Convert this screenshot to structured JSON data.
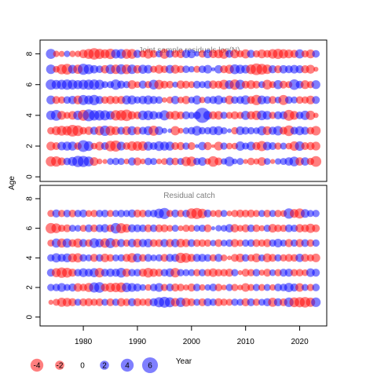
{
  "chart_data": {
    "type": "scatter",
    "encoding": "bubble residual plot; circle area proportional to |residual|, red = negative, blue = positive",
    "colors": {
      "negative": "#ff0000",
      "positive": "#0000ff",
      "opacity": 0.5
    },
    "xlabel": "Year",
    "ylabel": "Age",
    "x_ticks": [
      "1980",
      "1990",
      "2000",
      "2010",
      "2020"
    ],
    "xlim": [
      1972,
      2025
    ],
    "panels": [
      {
        "title": "Joint sample residuals log(N)",
        "ylim": [
          -0.3,
          8.9
        ],
        "y_ticks": [
          "0",
          "2",
          "4",
          "6",
          "8"
        ],
        "x_start": 1974,
        "x_end": 2023,
        "ages": [
          1,
          2,
          3,
          4,
          5,
          6,
          7,
          8
        ],
        "residuals": [
          [
            -2.5,
            -2.6,
            -1.6,
            1.4,
            2.0,
            3.1,
            3.0,
            2.4,
            -1.8,
            -0.8,
            -0.6,
            1.1,
            1.3,
            1.2,
            -0.8,
            1.6,
            -1.6,
            -0.8,
            1.4,
            1.2,
            -0.8,
            -1.1,
            1.5,
            -1.4,
            1.2,
            -2.2,
            -2.4,
            1.3,
            1.8,
            -1.0,
            -2.7,
            -1.5,
            1.0,
            2.3,
            0.8,
            1.2,
            -0.6,
            -1.4,
            -0.9,
            -1.8,
            1.1,
            -0.6,
            1.0,
            1.2,
            1.7,
            2.3,
            -1.7,
            1.7,
            -1.3,
            -2.8
          ],
          [
            -1.9,
            -1.5,
            1.8,
            2.0,
            2.0,
            -1.4,
            3.3,
            2.3,
            -1.1,
            -1.9,
            1.5,
            -2.7,
            -3.0,
            1.9,
            -1.4,
            -2.2,
            -2.2,
            -2.2,
            2.0,
            1.5,
            2.3,
            2.0,
            2.0,
            -1.5,
            -1.6,
            1.3,
            -1.5,
            0.4,
            1.7,
            -1.6,
            -0.3,
            -1.9,
            1.3,
            -1.1,
            -1.1,
            2.1,
            1.2,
            1.9,
            -1.6,
            -2.5,
            1.8,
            1.5,
            -1.3,
            1.2,
            -1.1,
            -2.2,
            2.2,
            -1.5,
            -1.6,
            -1.9
          ],
          [
            -1.3,
            -2.0,
            -2.4,
            -2.2,
            -3.3,
            -2.8,
            -1.4,
            -1.7,
            1.6,
            -2.1,
            2.6,
            -2.3,
            -1.8,
            1.5,
            -1.9,
            2.0,
            -1.6,
            1.5,
            2.0,
            -2.5,
            1.8,
            0.8,
            0.5,
            -2.1,
            -0.8,
            1.1,
            1.4,
            2.3,
            1.3,
            1.3,
            1.8,
            2.0,
            1.2,
            0.5,
            -1.3,
            1.8,
            1.5,
            1.3,
            1.1,
            2.1,
            -1.9,
            1.6,
            2.2,
            -1.5,
            -2.8,
            1.5,
            2.0,
            1.6,
            -1.4,
            -2.2
          ],
          [
            2.1,
            2.8,
            -1.9,
            -1.2,
            -1.8,
            2.1,
            -2.9,
            3.4,
            2.6,
            2.6,
            2.5,
            1.9,
            -2.6,
            -2.7,
            -3.2,
            -1.7,
            -1.5,
            2.2,
            2.3,
            1.8,
            1.3,
            2.5,
            -1.6,
            -2.0,
            -1.5,
            1.6,
            1.2,
            1.5,
            5.5,
            1.9,
            -1.6,
            -1.8,
            1.3,
            -1.2,
            -1.6,
            -1.3,
            2.0,
            -1.7,
            -2.1,
            2.3,
            1.9,
            -1.3,
            1.6,
            1.6,
            -2.9,
            -1.9,
            1.4,
            2.1,
            -2.1,
            -0.7
          ],
          [
            1.9,
            -1.5,
            -1.3,
            1.4,
            1.7,
            -1.9,
            2.5,
            2.0,
            2.6,
            1.6,
            -1.4,
            -1.7,
            -1.5,
            -1.6,
            2.0,
            2.0,
            1.3,
            1.7,
            2.0,
            1.6,
            1.4,
            -0.7,
            -1.2,
            1.7,
            -1.1,
            -1.7,
            1.1,
            2.0,
            -1.0,
            1.3,
            1.5,
            2.0,
            1.0,
            -1.9,
            1.4,
            1.5,
            2.1,
            -1.5,
            -2.6,
            1.9,
            1.5,
            -1.5,
            1.1,
            -2.5,
            1.4,
            1.2,
            -1.4,
            -1.3,
            -1.8,
            1.5
          ],
          [
            2.6,
            2.1,
            2.3,
            2.6,
            2.3,
            2.0,
            2.3,
            2.5,
            2.6,
            2.3,
            1.2,
            1.3,
            2.6,
            1.6,
            1.3,
            -1.9,
            -1.1,
            1.6,
            -1.3,
            2.3,
            -2.2,
            -1.5,
            -1.4,
            0.9,
            -1.7,
            -1.5,
            -1.2,
            1.5,
            1.2,
            1.6,
            -1.7,
            -1.5,
            -2.3,
            1.9,
            -2.6,
            2.3,
            -1.5,
            -1.9,
            -1.5,
            1.2,
            -2.3,
            -1.2,
            2.0,
            -1.5,
            -1.2,
            2.7,
            1.5,
            -1.9,
            -1.3,
            1.9
          ],
          [
            2.2,
            -1.1,
            -2.5,
            -2.8,
            1.9,
            -2.1,
            3.0,
            2.4,
            1.7,
            1.4,
            -1.7,
            2.2,
            -2.2,
            2.5,
            -2.3,
            2.2,
            -1.7,
            2.0,
            1.8,
            -1.2,
            -1.9,
            -1.4,
            1.8,
            -1.9,
            -1.4,
            1.4,
            1.0,
            -1.2,
            1.4,
            1.8,
            0.4,
            1.7,
            -1.5,
            -2.0,
            2.4,
            2.0,
            1.8,
            -2.3,
            -3.3,
            -2.8,
            -2.2,
            1.6,
            -1.5,
            1.7,
            1.5,
            1.8,
            1.6,
            -1.6,
            -1.9,
            -0.6
          ],
          [
            2.4,
            -1.0,
            -0.9,
            1.0,
            -1.0,
            -1.0,
            -1.8,
            -2.4,
            -3.2,
            -2.5,
            -2.0,
            -2.6,
            2.1,
            2.2,
            -2.3,
            -2.3,
            1.6,
            -1.3,
            -2.2,
            -1.5,
            1.2,
            -2.3,
            1.5,
            -1.4,
            -1.7,
            1.7,
            1.8,
            0.7,
            -1.4,
            1.8,
            -1.7,
            -1.9,
            -2.3,
            1.5,
            -1.9,
            -1.3,
            -2.0,
            1.6,
            -1.3,
            -1.9,
            -1.5,
            -2.2,
            -2.5,
            -2.1,
            -1.9,
            -1.6,
            2.0,
            -1.3,
            -1.9,
            1.4
          ]
        ]
      },
      {
        "title": "Residual catch",
        "ylim": [
          -0.6,
          8.9
        ],
        "y_ticks": [
          "0",
          "2",
          "4",
          "6",
          "8"
        ],
        "x_start": 1974,
        "x_end": 2023,
        "ages": [
          1,
          2,
          3,
          4,
          5,
          6,
          7
        ],
        "residuals": [
          [
            -0.6,
            -1.2,
            -2.0,
            -1.9,
            -1.6,
            1.2,
            -1.5,
            -1.6,
            -1.3,
            -1.5,
            1.2,
            -1.5,
            1.3,
            -1.7,
            -1.4,
            1.6,
            -1.6,
            -1.3,
            -1.5,
            1.6,
            2.5,
            2.9,
            2.4,
            -1.8,
            2.2,
            -1.9,
            -1.5,
            1.2,
            -1.5,
            1.6,
            1.3,
            -1.6,
            -1.3,
            -1.2,
            1.3,
            1.2,
            -1.6,
            1.5,
            -1.3,
            1.2,
            1.6,
            -2.0,
            1.6,
            -1.5,
            2.2,
            -2.3,
            -2.5,
            -2.7,
            -2.1,
            2.2
          ],
          [
            1.3,
            1.4,
            1.9,
            1.2,
            1.6,
            -1.8,
            -1.4,
            -2.0,
            2.5,
            2.7,
            -1.6,
            -2.1,
            -2.2,
            -2.4,
            2.2,
            1.9,
            1.6,
            1.1,
            -1.1,
            1.4,
            1.9,
            -1.3,
            1.5,
            -1.6,
            -1.4,
            -0.9,
            -1.6,
            1.4,
            -1.0,
            1.0,
            1.5,
            -1.4,
            -0.8,
            1.3,
            -1.3,
            -0.8,
            -1.8,
            -1.2,
            1.3,
            -1.2,
            1.2,
            -1.0,
            1.5,
            1.4,
            2.1,
            1.6,
            -1.8,
            1.2,
            -1.3,
            1.4
          ],
          [
            1.5,
            -2.0,
            -2.6,
            -2.4,
            -1.6,
            1.4,
            1.9,
            1.6,
            2.0,
            -2.2,
            1.5,
            1.7,
            1.6,
            2.3,
            -1.7,
            1.4,
            1.4,
            -1.6,
            -2.3,
            -1.7,
            -1.5,
            1.4,
            1.8,
            -2.2,
            1.3,
            1.2,
            1.2,
            -1.3,
            1.3,
            -1.4,
            -1.8,
            -1.4,
            -1.4,
            -1.6,
            1.3,
            -0.6,
            -1.5,
            -1.3,
            1.4,
            -0.9,
            -1.5,
            1.1,
            -1.3,
            1.5,
            1.6,
            -1.3,
            -1.4,
            -1.1,
            1.8,
            1.5
          ],
          [
            1.3,
            2.1,
            1.6,
            1.9,
            -1.9,
            -2.1,
            1.4,
            1.2,
            -1.6,
            1.4,
            -1.8,
            -1.4,
            1.2,
            1.3,
            -1.6,
            -2.2,
            1.9,
            -1.4,
            1.5,
            1.1,
            1.3,
            -1.5,
            1.6,
            1.6,
            -2.6,
            -2.3,
            -1.6,
            1.6,
            1.6,
            1.4,
            -1.3,
            1.6,
            -1.1,
            -0.5,
            -1.5,
            -1.8,
            1.4,
            -1.3,
            -1.9,
            1.2,
            -1.9,
            -1.5,
            1.3,
            -1.3,
            -1.5,
            -1.4,
            1.7,
            -1.6,
            -1.3,
            -1.8
          ],
          [
            -1.2,
            2.0,
            -2.0,
            2.0,
            -1.5,
            -2.0,
            1.6,
            -1.4,
            2.3,
            1.8,
            -2.2,
            2.4,
            -1.7,
            1.6,
            -1.3,
            1.7,
            -1.8,
            1.6,
            1.8,
            -1.5,
            -1.5,
            1.6,
            -1.6,
            1.7,
            -1.8,
            -1.6,
            1.5,
            -1.4,
            -1.4,
            -1.3,
            1.0,
            -1.5,
            1.1,
            1.4,
            -1.6,
            -1.2,
            1.3,
            1.4,
            -1.5,
            -1.3,
            -1.6,
            1.3,
            1.8,
            1.2,
            -1.6,
            1.3,
            -1.6,
            1.5,
            -1.4,
            1.3
          ],
          [
            -2.7,
            -2.3,
            -1.3,
            -1.5,
            1.2,
            1.1,
            -1.2,
            1.5,
            -1.4,
            1.5,
            1.7,
            -1.4,
            2.7,
            -2.5,
            -1.8,
            1.6,
            1.5,
            1.4,
            -1.5,
            1.4,
            -1.5,
            -1.5,
            -1.1,
            1.2,
            -0.8,
            -1.3,
            -1.2,
            1.1,
            1.3,
            -1.5,
            0.4,
            1.0,
            1.1,
            1.7,
            -1.7,
            -1.1,
            -1.6,
            1.4,
            -1.4,
            -0.9,
            1.3,
            -1.8,
            -1.4,
            -1.3,
            1.5,
            1.3,
            -1.7,
            -1.5,
            -2.1,
            -1.5
          ],
          [
            -1.2,
            1.6,
            -1.3,
            1.4,
            -1.4,
            1.3,
            1.5,
            -1.1,
            -1.3,
            1.3,
            1.4,
            -1.2,
            1.2,
            1.4,
            1.2,
            1.6,
            -1.5,
            -1.4,
            1.3,
            1.4,
            2.3,
            3.0,
            -1.2,
            1.5,
            -1.3,
            1.4,
            -2.6,
            -3.0,
            -2.2,
            1.5,
            -1.1,
            -1.4,
            1.2,
            -0.8,
            -1.3,
            -1.5,
            -1.4,
            -1.5,
            -1.2,
            1.2,
            -1.4,
            1.2,
            -1.3,
            -1.1,
            2.6,
            -1.9,
            -2.5,
            1.8,
            1.2,
            1.3
          ]
        ]
      }
    ],
    "legend": {
      "placement": "bottom-left",
      "values": [
        "-4",
        "-2",
        "0",
        "2",
        "4",
        "6"
      ]
    }
  }
}
